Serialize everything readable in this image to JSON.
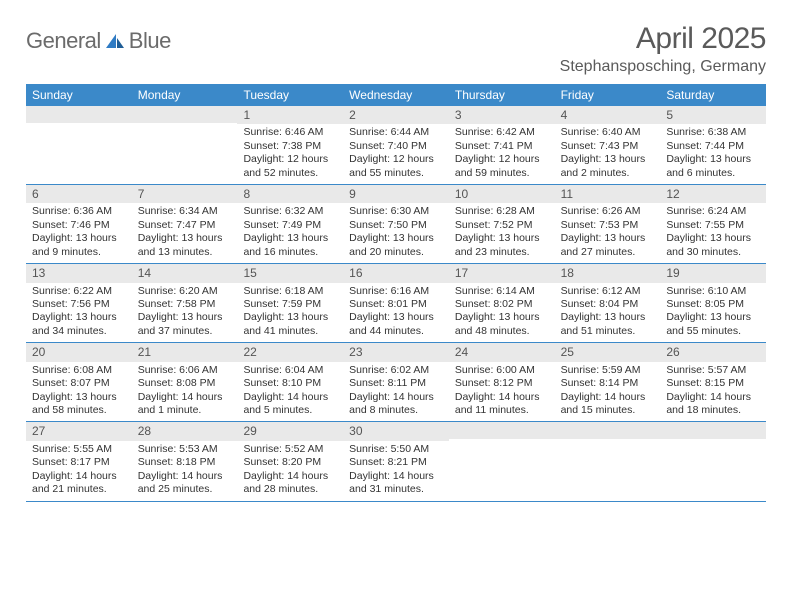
{
  "branding": {
    "logo_word1": "General",
    "logo_word2": "Blue",
    "logo_text_color": "#6b6b6b",
    "logo_accent_color": "#2f7bc4"
  },
  "header": {
    "month_title": "April 2025",
    "location": "Stephansposching, Germany",
    "title_color": "#5a5a5a",
    "title_fontsize": 30,
    "location_fontsize": 16
  },
  "colors": {
    "header_bar_bg": "#3b89c9",
    "header_bar_text": "#ffffff",
    "daynum_bg": "#e9e9e9",
    "daynum_text": "#555555",
    "body_text": "#333333",
    "rule": "#3b89c9",
    "page_bg": "#ffffff"
  },
  "weekdays": [
    "Sunday",
    "Monday",
    "Tuesday",
    "Wednesday",
    "Thursday",
    "Friday",
    "Saturday"
  ],
  "weeks": [
    [
      {
        "n": "",
        "sr": "",
        "ss": "",
        "dl": ""
      },
      {
        "n": "",
        "sr": "",
        "ss": "",
        "dl": ""
      },
      {
        "n": "1",
        "sr": "Sunrise: 6:46 AM",
        "ss": "Sunset: 7:38 PM",
        "dl": "Daylight: 12 hours and 52 minutes."
      },
      {
        "n": "2",
        "sr": "Sunrise: 6:44 AM",
        "ss": "Sunset: 7:40 PM",
        "dl": "Daylight: 12 hours and 55 minutes."
      },
      {
        "n": "3",
        "sr": "Sunrise: 6:42 AM",
        "ss": "Sunset: 7:41 PM",
        "dl": "Daylight: 12 hours and 59 minutes."
      },
      {
        "n": "4",
        "sr": "Sunrise: 6:40 AM",
        "ss": "Sunset: 7:43 PM",
        "dl": "Daylight: 13 hours and 2 minutes."
      },
      {
        "n": "5",
        "sr": "Sunrise: 6:38 AM",
        "ss": "Sunset: 7:44 PM",
        "dl": "Daylight: 13 hours and 6 minutes."
      }
    ],
    [
      {
        "n": "6",
        "sr": "Sunrise: 6:36 AM",
        "ss": "Sunset: 7:46 PM",
        "dl": "Daylight: 13 hours and 9 minutes."
      },
      {
        "n": "7",
        "sr": "Sunrise: 6:34 AM",
        "ss": "Sunset: 7:47 PM",
        "dl": "Daylight: 13 hours and 13 minutes."
      },
      {
        "n": "8",
        "sr": "Sunrise: 6:32 AM",
        "ss": "Sunset: 7:49 PM",
        "dl": "Daylight: 13 hours and 16 minutes."
      },
      {
        "n": "9",
        "sr": "Sunrise: 6:30 AM",
        "ss": "Sunset: 7:50 PM",
        "dl": "Daylight: 13 hours and 20 minutes."
      },
      {
        "n": "10",
        "sr": "Sunrise: 6:28 AM",
        "ss": "Sunset: 7:52 PM",
        "dl": "Daylight: 13 hours and 23 minutes."
      },
      {
        "n": "11",
        "sr": "Sunrise: 6:26 AM",
        "ss": "Sunset: 7:53 PM",
        "dl": "Daylight: 13 hours and 27 minutes."
      },
      {
        "n": "12",
        "sr": "Sunrise: 6:24 AM",
        "ss": "Sunset: 7:55 PM",
        "dl": "Daylight: 13 hours and 30 minutes."
      }
    ],
    [
      {
        "n": "13",
        "sr": "Sunrise: 6:22 AM",
        "ss": "Sunset: 7:56 PM",
        "dl": "Daylight: 13 hours and 34 minutes."
      },
      {
        "n": "14",
        "sr": "Sunrise: 6:20 AM",
        "ss": "Sunset: 7:58 PM",
        "dl": "Daylight: 13 hours and 37 minutes."
      },
      {
        "n": "15",
        "sr": "Sunrise: 6:18 AM",
        "ss": "Sunset: 7:59 PM",
        "dl": "Daylight: 13 hours and 41 minutes."
      },
      {
        "n": "16",
        "sr": "Sunrise: 6:16 AM",
        "ss": "Sunset: 8:01 PM",
        "dl": "Daylight: 13 hours and 44 minutes."
      },
      {
        "n": "17",
        "sr": "Sunrise: 6:14 AM",
        "ss": "Sunset: 8:02 PM",
        "dl": "Daylight: 13 hours and 48 minutes."
      },
      {
        "n": "18",
        "sr": "Sunrise: 6:12 AM",
        "ss": "Sunset: 8:04 PM",
        "dl": "Daylight: 13 hours and 51 minutes."
      },
      {
        "n": "19",
        "sr": "Sunrise: 6:10 AM",
        "ss": "Sunset: 8:05 PM",
        "dl": "Daylight: 13 hours and 55 minutes."
      }
    ],
    [
      {
        "n": "20",
        "sr": "Sunrise: 6:08 AM",
        "ss": "Sunset: 8:07 PM",
        "dl": "Daylight: 13 hours and 58 minutes."
      },
      {
        "n": "21",
        "sr": "Sunrise: 6:06 AM",
        "ss": "Sunset: 8:08 PM",
        "dl": "Daylight: 14 hours and 1 minute."
      },
      {
        "n": "22",
        "sr": "Sunrise: 6:04 AM",
        "ss": "Sunset: 8:10 PM",
        "dl": "Daylight: 14 hours and 5 minutes."
      },
      {
        "n": "23",
        "sr": "Sunrise: 6:02 AM",
        "ss": "Sunset: 8:11 PM",
        "dl": "Daylight: 14 hours and 8 minutes."
      },
      {
        "n": "24",
        "sr": "Sunrise: 6:00 AM",
        "ss": "Sunset: 8:12 PM",
        "dl": "Daylight: 14 hours and 11 minutes."
      },
      {
        "n": "25",
        "sr": "Sunrise: 5:59 AM",
        "ss": "Sunset: 8:14 PM",
        "dl": "Daylight: 14 hours and 15 minutes."
      },
      {
        "n": "26",
        "sr": "Sunrise: 5:57 AM",
        "ss": "Sunset: 8:15 PM",
        "dl": "Daylight: 14 hours and 18 minutes."
      }
    ],
    [
      {
        "n": "27",
        "sr": "Sunrise: 5:55 AM",
        "ss": "Sunset: 8:17 PM",
        "dl": "Daylight: 14 hours and 21 minutes."
      },
      {
        "n": "28",
        "sr": "Sunrise: 5:53 AM",
        "ss": "Sunset: 8:18 PM",
        "dl": "Daylight: 14 hours and 25 minutes."
      },
      {
        "n": "29",
        "sr": "Sunrise: 5:52 AM",
        "ss": "Sunset: 8:20 PM",
        "dl": "Daylight: 14 hours and 28 minutes."
      },
      {
        "n": "30",
        "sr": "Sunrise: 5:50 AM",
        "ss": "Sunset: 8:21 PM",
        "dl": "Daylight: 14 hours and 31 minutes."
      },
      {
        "n": "",
        "sr": "",
        "ss": "",
        "dl": ""
      },
      {
        "n": "",
        "sr": "",
        "ss": "",
        "dl": ""
      },
      {
        "n": "",
        "sr": "",
        "ss": "",
        "dl": ""
      }
    ]
  ]
}
